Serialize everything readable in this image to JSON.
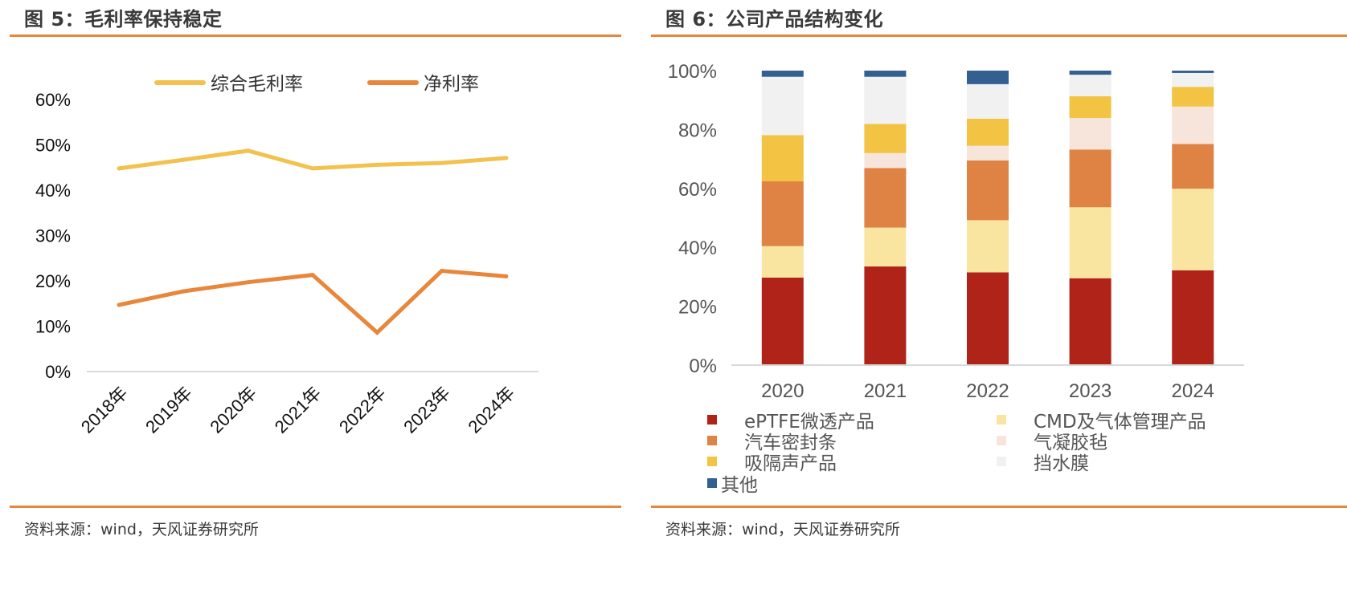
{
  "left_panel": {
    "title": "图 5：毛利率保持稳定",
    "source": "资料来源：wind，天风证券研究所"
  },
  "right_panel": {
    "title": "图 6：公司产品结构变化",
    "source": "资料来源：wind，天风证券研究所"
  },
  "chart_data": [
    {
      "type": "line",
      "title": "毛利率保持稳定",
      "categories": [
        "2018年",
        "2019年",
        "2020年",
        "2021年",
        "2022年",
        "2023年",
        "2024年"
      ],
      "series": [
        {
          "name": "综合毛利率",
          "color": "#f2c14e",
          "values": [
            44.8,
            46.7,
            48.7,
            44.8,
            45.6,
            46.0,
            47.1
          ]
        },
        {
          "name": "净利率",
          "color": "#e8873b",
          "values": [
            14.7,
            17.7,
            19.7,
            21.3,
            8.6,
            22.2,
            21.0
          ]
        }
      ],
      "yticks": [
        "0%",
        "10%",
        "20%",
        "30%",
        "40%",
        "50%",
        "60%"
      ],
      "ylim": [
        0,
        60
      ],
      "xlabel": "",
      "ylabel": "",
      "legend": "top",
      "grid": false
    },
    {
      "type": "bar",
      "stacked": true,
      "title": "公司产品结构变化",
      "categories": [
        "2020",
        "2021",
        "2022",
        "2023",
        "2024"
      ],
      "series": [
        {
          "name": "ePTFE微透产品",
          "color": "#b02318",
          "values": [
            29.7,
            33.5,
            31.5,
            29.5,
            32.2
          ]
        },
        {
          "name": "CMD及气体管理产品",
          "color": "#fae5a0",
          "values": [
            10.7,
            13.2,
            17.7,
            24.1,
            27.7
          ]
        },
        {
          "name": "汽车密封条",
          "color": "#df8345",
          "values": [
            22.0,
            20.2,
            20.3,
            19.6,
            15.2
          ]
        },
        {
          "name": "气凝胶毡",
          "color": "#f7e5db",
          "values": [
            0.0,
            5.1,
            5.0,
            10.7,
            12.7
          ]
        },
        {
          "name": "吸隔声产品",
          "color": "#f3c343",
          "values": [
            15.7,
            9.9,
            9.2,
            7.4,
            6.7
          ]
        },
        {
          "name": "挡水膜",
          "color": "#f1f1f1",
          "values": [
            19.8,
            16.0,
            11.7,
            7.3,
            4.7
          ]
        },
        {
          "name": "其他",
          "color": "#345f91",
          "values": [
            2.1,
            2.1,
            4.6,
            1.4,
            0.8
          ]
        }
      ],
      "yticks": [
        "0%",
        "20%",
        "40%",
        "60%",
        "80%",
        "100%"
      ],
      "ylim": [
        0,
        100
      ],
      "xlabel": "",
      "ylabel": "",
      "legend": "bottom",
      "grid": false
    }
  ]
}
